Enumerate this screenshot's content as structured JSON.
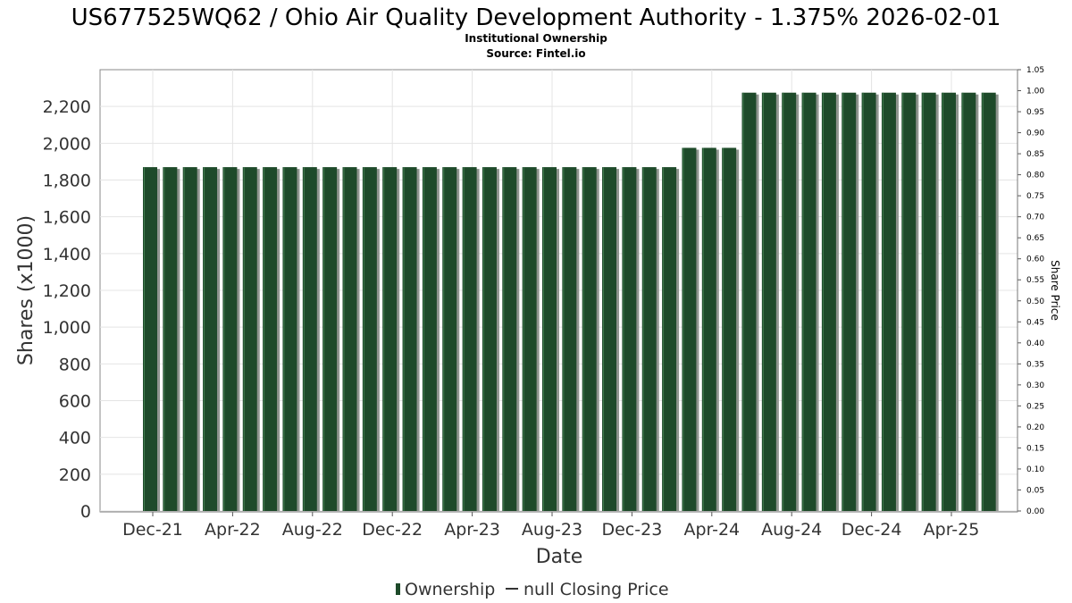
{
  "chart_data": {
    "type": "bar",
    "title": "US677525WQ62 / Ohio Air Quality Development Authority - 1.375% 2026-02-01",
    "subtitle_lines": [
      "Institutional Ownership",
      "Source: Fintel.io"
    ],
    "xlabel": "Date",
    "ylabel": "Shares (x1000)",
    "y2label": "Share Price",
    "ylim": [
      0,
      2400
    ],
    "y2lim": [
      0,
      1.05
    ],
    "y_ticks": [
      0,
      200,
      400,
      600,
      800,
      1000,
      1200,
      1400,
      1600,
      1800,
      2000,
      2200
    ],
    "y_tick_labels": [
      "0",
      "200",
      "400",
      "600",
      "800",
      "1,000",
      "1,200",
      "1,400",
      "1,600",
      "1,800",
      "2,000",
      "2,200"
    ],
    "y2_ticks": [
      0,
      0.05,
      0.1,
      0.15,
      0.2,
      0.25,
      0.3,
      0.35,
      0.4,
      0.45,
      0.5,
      0.55,
      0.6,
      0.65,
      0.7,
      0.75,
      0.8,
      0.85,
      0.9,
      0.95,
      1.0,
      1.05
    ],
    "y2_tick_labels": [
      "0.00",
      "0.05",
      "0.10",
      "0.15",
      "0.20",
      "0.25",
      "0.30",
      "0.35",
      "0.40",
      "0.45",
      "0.50",
      "0.55",
      "0.60",
      "0.65",
      "0.70",
      "0.75",
      "0.80",
      "0.85",
      "0.90",
      "0.95",
      "1.00",
      "1.05"
    ],
    "x_tick_labels": [
      "Dec-21",
      "Apr-22",
      "Aug-22",
      "Dec-22",
      "Apr-23",
      "Aug-23",
      "Dec-23",
      "Apr-24",
      "Aug-24",
      "Dec-24",
      "Apr-25"
    ],
    "grid": true,
    "legend_position": "bottom-center",
    "series": [
      {
        "name": "Ownership",
        "color": "#1e4a2a",
        "values": [
          1870,
          1870,
          1870,
          1870,
          1870,
          1870,
          1870,
          1870,
          1870,
          1870,
          1870,
          1870,
          1870,
          1870,
          1870,
          1870,
          1870,
          1870,
          1870,
          1870,
          1870,
          1870,
          1870,
          1870,
          1870,
          1870,
          1870,
          1975,
          1975,
          1975,
          2275,
          2275,
          2275,
          2275,
          2275,
          2275,
          2275,
          2275,
          2275,
          2275,
          2275,
          2275,
          2275
        ]
      },
      {
        "name": "null Closing Price",
        "color": "#333333",
        "values": []
      }
    ]
  }
}
